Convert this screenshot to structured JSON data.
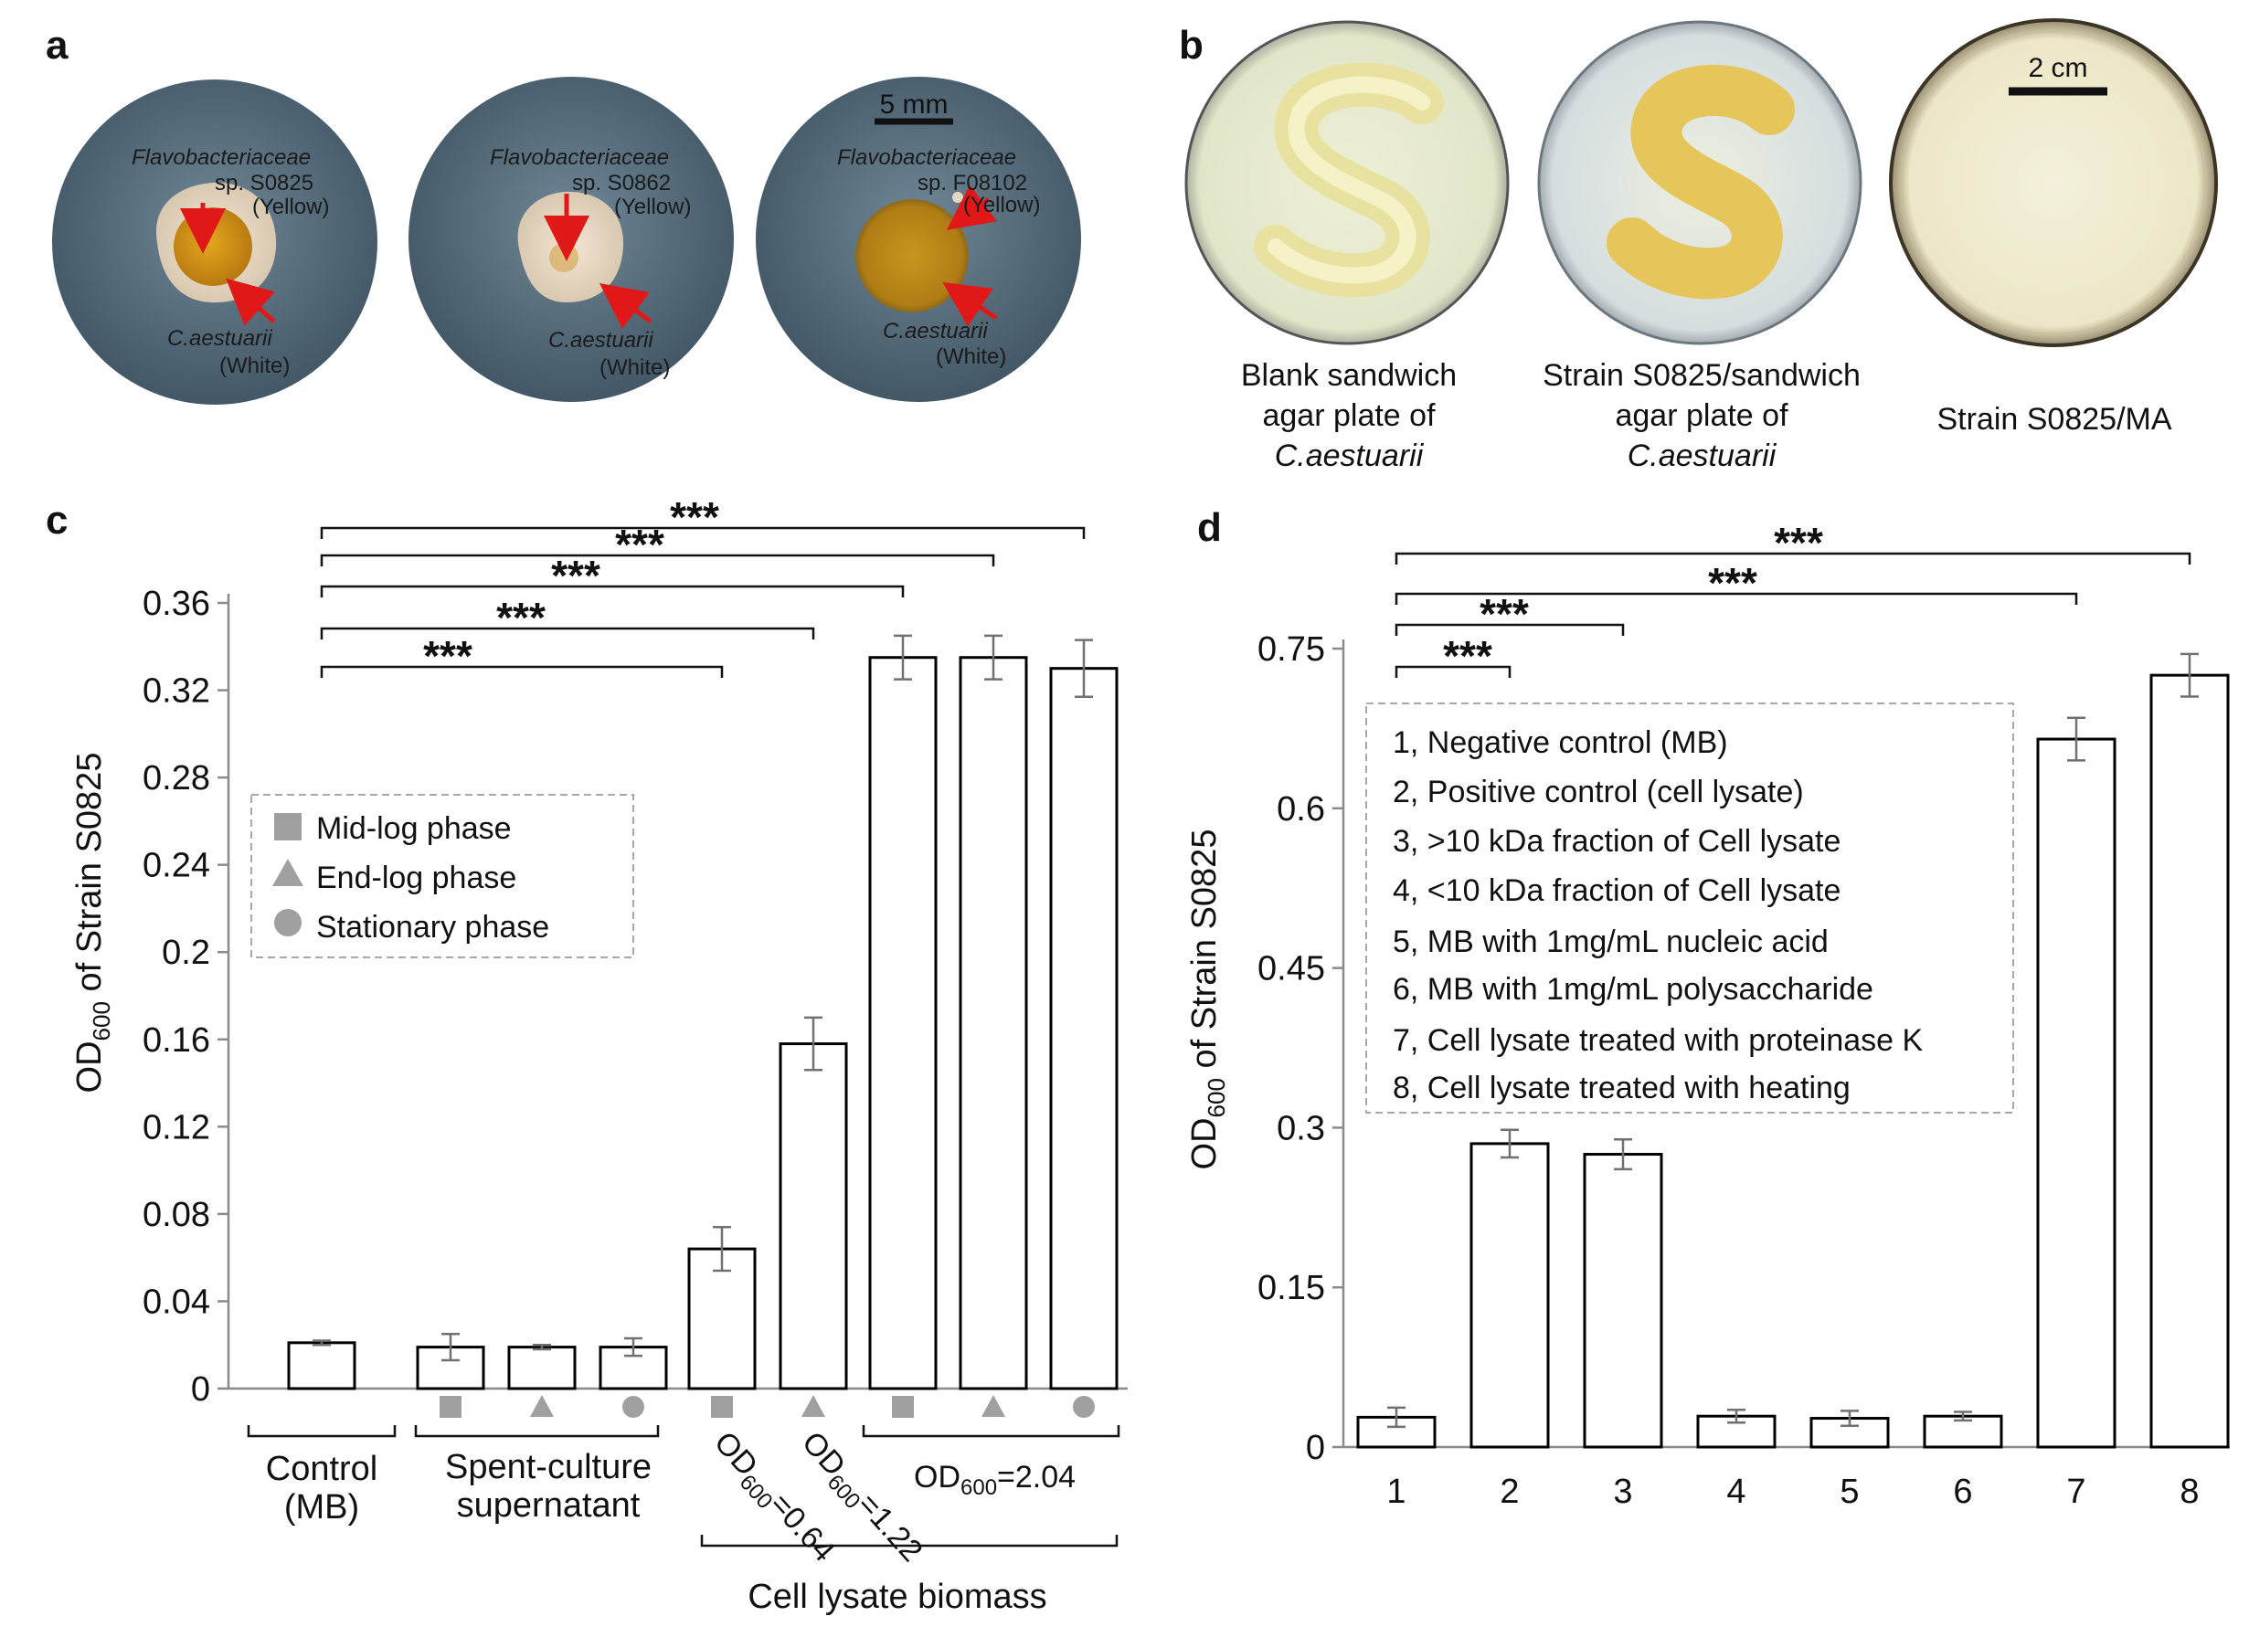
{
  "panel_labels": {
    "a": "a",
    "b": "b",
    "c": "c",
    "d": "d"
  },
  "panel_a": {
    "scale_bar": "5 mm",
    "plates": [
      {
        "top_species": "Flavobacteriaceae",
        "top_strain": "sp. S0825",
        "top_color": "(Yellow)",
        "bottom_species": "C.aestuarii",
        "bottom_color": "(White)"
      },
      {
        "top_species": "Flavobacteriaceae",
        "top_strain": "sp. S0862",
        "top_color": "(Yellow)",
        "bottom_species": "C.aestuarii",
        "bottom_color": "(White)"
      },
      {
        "top_species": "Flavobacteriaceae",
        "top_strain": "sp. F08102",
        "top_color": "(Yellow)",
        "bottom_species": "C.aestuarii",
        "bottom_color": "(White)"
      }
    ]
  },
  "panel_b": {
    "scale_bar": "2 cm",
    "captions": [
      {
        "line1": "Blank sandwich",
        "line2": "agar plate of",
        "line3": "C.aestuarii"
      },
      {
        "line1": "Strain S0825/sandwich",
        "line2": "agar plate of",
        "line3": "C.aestuarii"
      },
      {
        "line1": "Strain S0825/MA"
      }
    ]
  },
  "chart_data": [
    {
      "type": "bar",
      "panel": "c",
      "ylabel_main": "OD",
      "ylabel_sub": "600",
      "ylabel_rest": " of Strain S0825",
      "ylim": [
        0,
        0.36
      ],
      "yticks": [
        "0",
        "0.04",
        "0.08",
        "0.12",
        "0.16",
        "0.2",
        "0.24",
        "0.28",
        "0.32",
        "0.36"
      ],
      "values": [
        0.021,
        0.019,
        0.019,
        0.019,
        0.064,
        0.158,
        0.335,
        0.335,
        0.33
      ],
      "errors": [
        0.001,
        0.006,
        0.001,
        0.004,
        0.01,
        0.012,
        0.01,
        0.01,
        0.013
      ],
      "phase_markers": [
        "",
        "square",
        "triangle",
        "circle",
        "square",
        "triangle",
        "square",
        "triangle",
        "circle"
      ],
      "legend": [
        "Mid-log phase",
        "End-log phase",
        "Stationary phase"
      ],
      "group_labels": {
        "control_1": "Control",
        "control_2": "(MB)",
        "spent_1": "Spent-culture",
        "spent_2": "supernatant",
        "od064_main": "OD",
        "od064_sub": "600",
        "od064_rest": "=0.64",
        "od122_main": "OD",
        "od122_sub": "600",
        "od122_rest": "=1.22",
        "od204_main": "OD",
        "od204_sub": "600",
        "od204_rest": "=2.04",
        "lysate": "Cell lysate biomass"
      },
      "significance": [
        "***",
        "***",
        "***",
        "***",
        "***"
      ],
      "significance_pairs": [
        [
          0,
          4
        ],
        [
          0,
          5
        ],
        [
          0,
          6
        ],
        [
          0,
          7
        ],
        [
          0,
          8
        ]
      ]
    },
    {
      "type": "bar",
      "panel": "d",
      "ylabel_main": "OD",
      "ylabel_sub": "600",
      "ylabel_rest": " of Strain S0825",
      "ylim": [
        0,
        0.75
      ],
      "yticks": [
        "0",
        "0.15",
        "0.3",
        "0.45",
        "0.6",
        "0.75"
      ],
      "categories": [
        "1",
        "2",
        "3",
        "4",
        "5",
        "6",
        "7",
        "8"
      ],
      "values": [
        0.028,
        0.285,
        0.275,
        0.029,
        0.027,
        0.029,
        0.665,
        0.725
      ],
      "errors": [
        0.009,
        0.013,
        0.014,
        0.006,
        0.007,
        0.004,
        0.02,
        0.02
      ],
      "legend": [
        "1, Negative control (MB)",
        "2, Positive control (cell lysate)",
        "3, >10 kDa fraction of Cell lysate",
        "4, <10 kDa fraction of Cell lysate",
        "5, MB with 1mg/mL nucleic acid",
        "6, MB with 1mg/mL polysaccharide",
        "7, Cell lysate treated with proteinase K",
        "8, Cell lysate treated with heating"
      ],
      "significance": [
        "***",
        "***",
        "***",
        "***"
      ],
      "significance_pairs": [
        [
          0,
          1
        ],
        [
          0,
          2
        ],
        [
          0,
          6
        ],
        [
          0,
          7
        ]
      ]
    }
  ],
  "colors": {
    "bar_fill": "#ffffff",
    "bar_stroke": "#000000",
    "error": "#707070",
    "marker": "#a0a0a0",
    "arrow": "#e01818"
  }
}
